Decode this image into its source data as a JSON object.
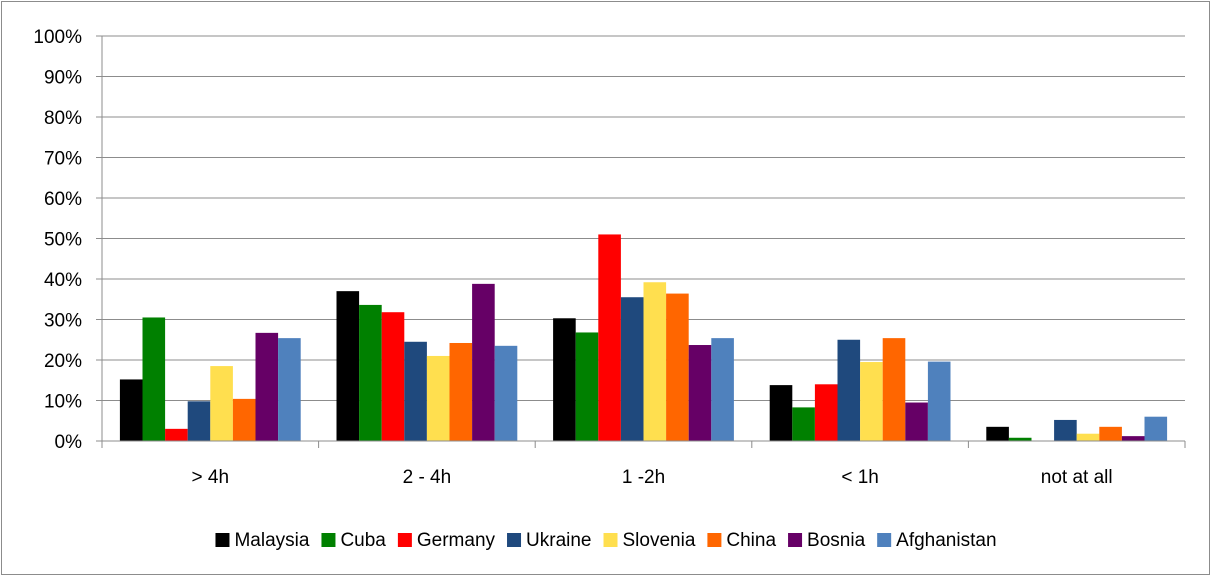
{
  "chart_data": {
    "type": "bar",
    "categories": [
      "> 4h",
      "2 - 4h",
      "1 -2h",
      "< 1h",
      "not at all"
    ],
    "series": [
      {
        "name": "Malaysia",
        "color": "#000000",
        "values": [
          15.2,
          37.0,
          30.3,
          13.8,
          3.5
        ]
      },
      {
        "name": "Cuba",
        "color": "#008000",
        "values": [
          30.5,
          33.6,
          26.8,
          8.3,
          0.8
        ]
      },
      {
        "name": "Germany",
        "color": "#ff0000",
        "values": [
          3.0,
          31.8,
          51.0,
          14.0,
          0.0
        ]
      },
      {
        "name": "Ukraine",
        "color": "#1f497d",
        "values": [
          9.8,
          24.5,
          35.5,
          25.0,
          5.2
        ]
      },
      {
        "name": "Slovenia",
        "color": "#ffdf4f",
        "values": [
          18.5,
          21.0,
          39.2,
          19.5,
          1.8
        ]
      },
      {
        "name": "China",
        "color": "#ff6600",
        "values": [
          10.4,
          24.2,
          36.4,
          25.4,
          3.5
        ]
      },
      {
        "name": "Bosnia",
        "color": "#660066",
        "values": [
          26.7,
          38.8,
          23.7,
          9.5,
          1.2
        ]
      },
      {
        "name": "Afghanistan",
        "color": "#4f81bd",
        "values": [
          25.4,
          23.5,
          25.4,
          19.6,
          6.0
        ]
      }
    ],
    "yticks": [
      "0%",
      "10%",
      "20%",
      "30%",
      "40%",
      "50%",
      "60%",
      "70%",
      "80%",
      "90%",
      "100%"
    ],
    "ylim": [
      0,
      100
    ],
    "grid": true,
    "legend_position": "bottom"
  }
}
